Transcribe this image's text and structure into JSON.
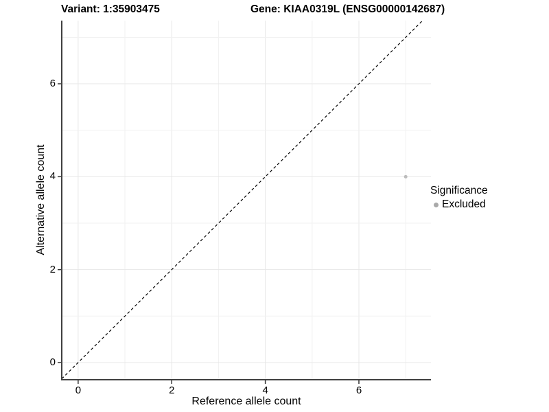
{
  "chart_data": {
    "type": "scatter",
    "title_variant": "Variant: 1:35903475",
    "title_gene": "Gene: KIAA0319L (ENSG00000142687)",
    "xlabel": "Reference allele count",
    "ylabel": "Alternative allele count",
    "xlim": [
      -0.35,
      7.54
    ],
    "ylim": [
      -0.37,
      7.36
    ],
    "xticks": [
      0,
      2,
      4,
      6
    ],
    "yticks": [
      0,
      2,
      4,
      6
    ],
    "grid": {
      "x_values": [
        0,
        1,
        2,
        3,
        4,
        5,
        6,
        7
      ],
      "y_values": [
        0,
        1,
        2,
        3,
        4,
        5,
        6,
        7
      ],
      "on": true
    },
    "reference_line": {
      "kind": "identity",
      "slope": 1,
      "intercept": 0,
      "style": "dashed",
      "color": "#000000"
    },
    "series": [
      {
        "name": "Excluded",
        "color": "#bcbcbc",
        "points": [
          {
            "x": 7,
            "y": 4
          }
        ]
      }
    ],
    "legend": {
      "title": "Significance",
      "position": "right",
      "items": [
        {
          "label": "Excluded",
          "color": "#a9a9a9"
        }
      ]
    },
    "colors": {
      "grid_major": "#e7e7e7",
      "grid_minor": "#f1f1f1",
      "axis_line": "#404040",
      "tick_mark": "#333333",
      "text": "#000000",
      "background": "#ffffff"
    }
  }
}
